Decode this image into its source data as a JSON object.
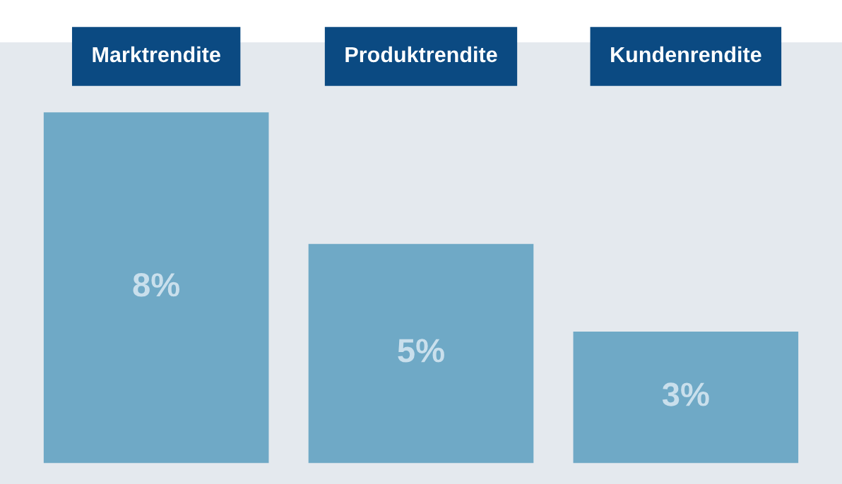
{
  "chart_data": {
    "type": "bar",
    "categories": [
      "Marktrendite",
      "Produktrendite",
      "Kundenrendite"
    ],
    "values": [
      8,
      5,
      3
    ],
    "value_labels": [
      "8%",
      "5%",
      "3%"
    ],
    "color": "#6fa9c6"
  }
}
